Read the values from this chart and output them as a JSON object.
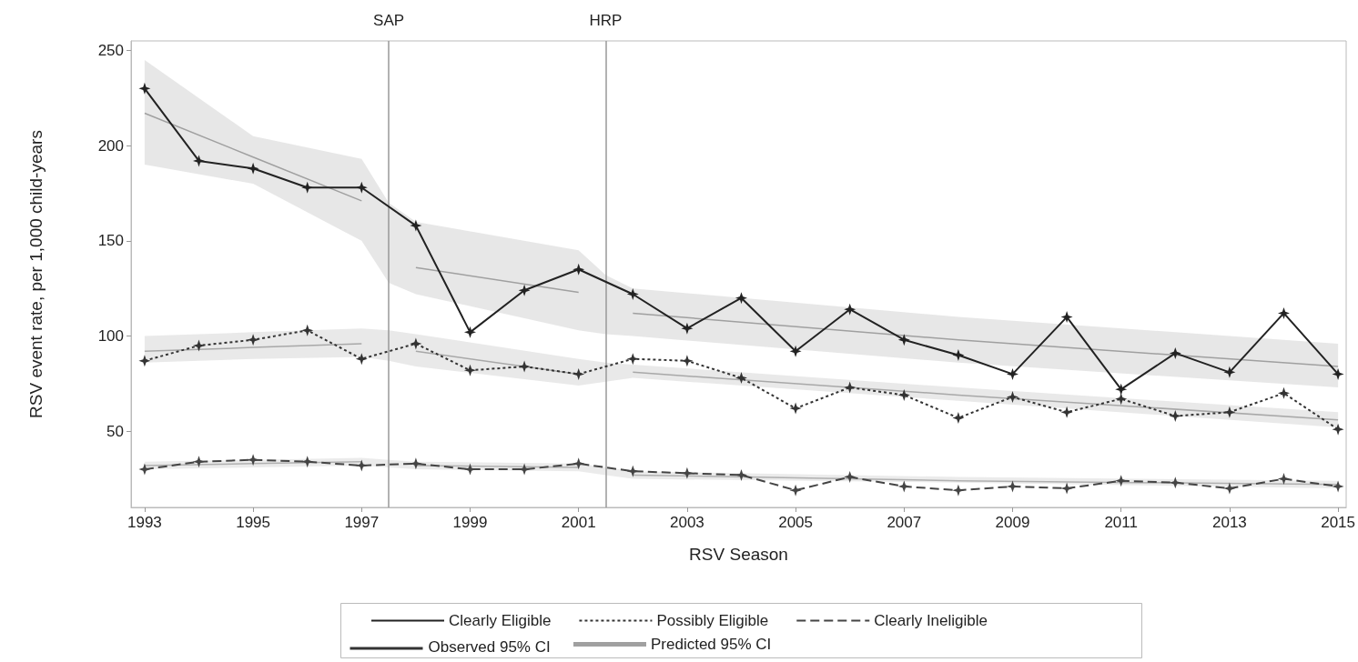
{
  "chart_data": {
    "type": "line",
    "xlabel": "RSV Season",
    "ylabel": "RSV event rate, per 1,000 child-years",
    "x": [
      1993,
      1994,
      1995,
      1996,
      1997,
      1998,
      1999,
      2000,
      2001,
      2002,
      2003,
      2004,
      2005,
      2006,
      2007,
      2008,
      2009,
      2010,
      2011,
      2012,
      2013,
      2014,
      2015
    ],
    "series": [
      {
        "name": "Clearly Eligible",
        "color": "#222222",
        "line_style": "solid",
        "marker": "star",
        "values": [
          230,
          192,
          188,
          178,
          178,
          158,
          102,
          124,
          135,
          122,
          104,
          120,
          92,
          114,
          98,
          90,
          80,
          110,
          72,
          91,
          81,
          112,
          80
        ]
      },
      {
        "name": "Possibly Eligible",
        "color": "#333333",
        "line_style": "dotted",
        "marker": "star",
        "values": [
          87,
          95,
          98,
          103,
          88,
          96,
          82,
          84,
          80,
          88,
          87,
          78,
          62,
          73,
          69,
          57,
          68,
          60,
          67,
          58,
          60,
          70,
          51
        ]
      },
      {
        "name": "Clearly Ineligible",
        "color": "#444444",
        "line_style": "dashed",
        "marker": "star",
        "values": [
          30,
          34,
          35,
          34,
          32,
          33,
          30,
          30,
          33,
          29,
          28,
          27,
          19,
          26,
          21,
          19,
          21,
          20,
          24,
          23,
          20,
          25,
          21
        ]
      },
      {
        "name": "Predicted 95% CI",
        "color": "#a0a0a0",
        "line_style": "solid",
        "marker": "none",
        "x": [
          1993,
          1995,
          1997,
          1997.5,
          1998,
          2001,
          2001.5,
          2002,
          2008,
          2015
        ],
        "values": [
          217,
          194,
          171,
          null,
          136,
          123,
          null,
          112,
          98,
          84
        ],
        "lower": [
          190,
          180,
          150,
          128,
          122,
          103,
          101,
          100,
          86,
          73
        ],
        "upper": [
          245,
          205,
          193,
          170,
          160,
          145,
          132,
          125,
          110,
          96
        ]
      },
      {
        "color": "#a8a8a8",
        "line_style": "solid",
        "marker": "none",
        "x": [
          1993,
          1995,
          1997,
          1997.5,
          1998,
          2001,
          2001.5,
          2002,
          2008,
          2015
        ],
        "values": [
          92,
          94,
          96,
          null,
          92,
          80,
          null,
          81,
          69,
          56
        ],
        "lower": [
          86,
          88,
          89,
          87,
          84,
          74,
          76,
          78,
          66,
          52
        ],
        "upper": [
          100,
          102,
          104,
          103,
          101,
          88,
          86,
          85,
          73,
          60
        ]
      },
      {
        "color": "#b0b0b0",
        "line_style": "solid",
        "marker": "none",
        "x": [
          1993,
          1995,
          1997,
          1997.5,
          1998,
          2001,
          2001.5,
          2002,
          2008,
          2015
        ],
        "values": [
          32,
          33,
          34,
          null,
          32,
          31,
          null,
          27,
          24,
          22
        ],
        "lower": [
          30,
          31,
          32,
          31,
          30,
          29,
          27,
          25,
          23,
          20
        ],
        "upper": [
          34,
          35,
          36,
          35,
          34,
          33,
          31,
          29,
          26,
          24
        ]
      }
    ],
    "xlim": [
      1992.75,
      2015.15
    ],
    "xticks": [
      1993,
      1995,
      1997,
      1999,
      2001,
      2003,
      2005,
      2007,
      2009,
      2011,
      2013,
      2015
    ],
    "ylim": [
      10,
      255
    ],
    "yticks": [
      50,
      100,
      150,
      200,
      250
    ],
    "ref_lines": [
      {
        "axis": "x",
        "value": 1997.5,
        "label": "SAP",
        "color": "#999999"
      },
      {
        "axis": "x",
        "value": 2001.5,
        "label": "HRP",
        "color": "#999999"
      }
    ],
    "annotations": [
      "Observed 95% CI"
    ],
    "grid": false,
    "legend": "bottom"
  }
}
